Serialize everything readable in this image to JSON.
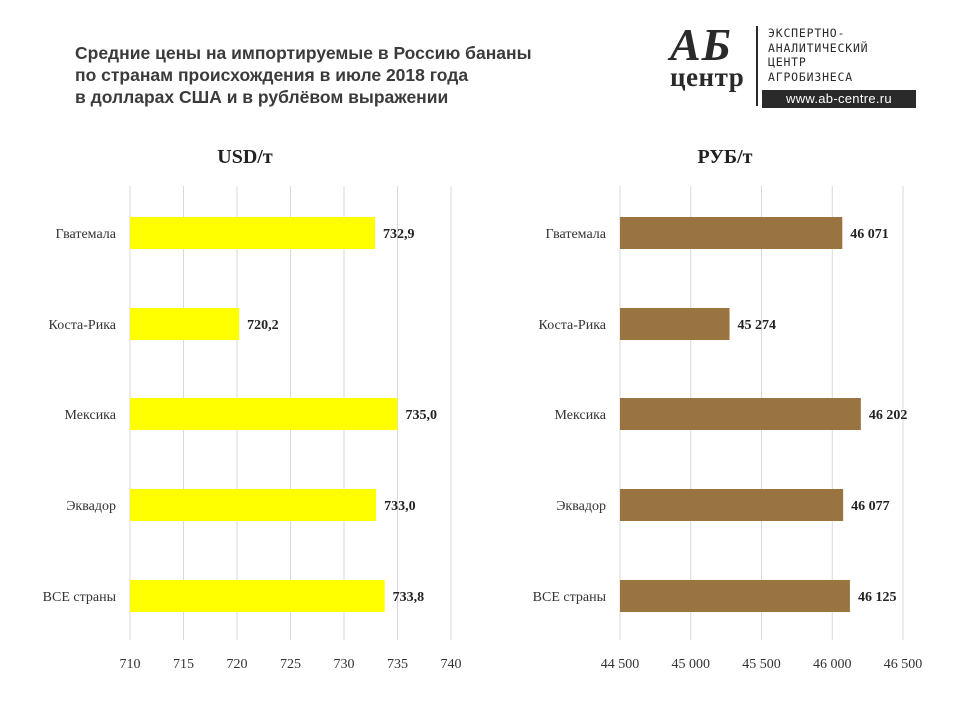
{
  "title": {
    "lines": [
      "Средние цены на импортируемые в Россию бананы",
      "по странам происхождения в июле 2018 года",
      "в долларах США и в рублёвом выражении"
    ]
  },
  "logo": {
    "mark_top": "АБ",
    "mark_bottom": "центр",
    "text_lines": [
      "ЭКСПЕРТНО-",
      "АНАЛИТИЧЕСКИЙ",
      "ЦЕНТР",
      "АГРОБИЗНЕСА"
    ],
    "url": "www.ab-centre.ru"
  },
  "chart_data": [
    {
      "type": "bar",
      "orientation": "horizontal",
      "title": "USD/т",
      "categories": [
        "Гватемала",
        "Коста-Рика",
        "Мексика",
        "Эквадор",
        "ВСЕ страны"
      ],
      "values": [
        732.9,
        720.2,
        735.0,
        733.0,
        733.8
      ],
      "value_labels": [
        "732,9",
        "720,2",
        "735,0",
        "733,0",
        "733,8"
      ],
      "xlim": [
        710,
        740
      ],
      "xticks": [
        710,
        715,
        720,
        725,
        730,
        735,
        740
      ],
      "xtick_labels": [
        "710",
        "715",
        "720",
        "725",
        "730",
        "735",
        "740"
      ],
      "color": "#ffff00",
      "grid": true
    },
    {
      "type": "bar",
      "orientation": "horizontal",
      "title": "РУБ/т",
      "categories": [
        "Гватемала",
        "Коста-Рика",
        "Мексика",
        "Эквадор",
        "ВСЕ страны"
      ],
      "values": [
        46071,
        45274,
        46202,
        46077,
        46125
      ],
      "value_labels": [
        "46 071",
        "45 274",
        "46 202",
        "46 077",
        "46 125"
      ],
      "xlim": [
        44500,
        46500
      ],
      "xticks": [
        44500,
        45000,
        45500,
        46000,
        46500
      ],
      "xtick_labels": [
        "44 500",
        "45 000",
        "45 500",
        "46 000",
        "46 500"
      ],
      "color": "#9a7440",
      "grid": true
    }
  ]
}
